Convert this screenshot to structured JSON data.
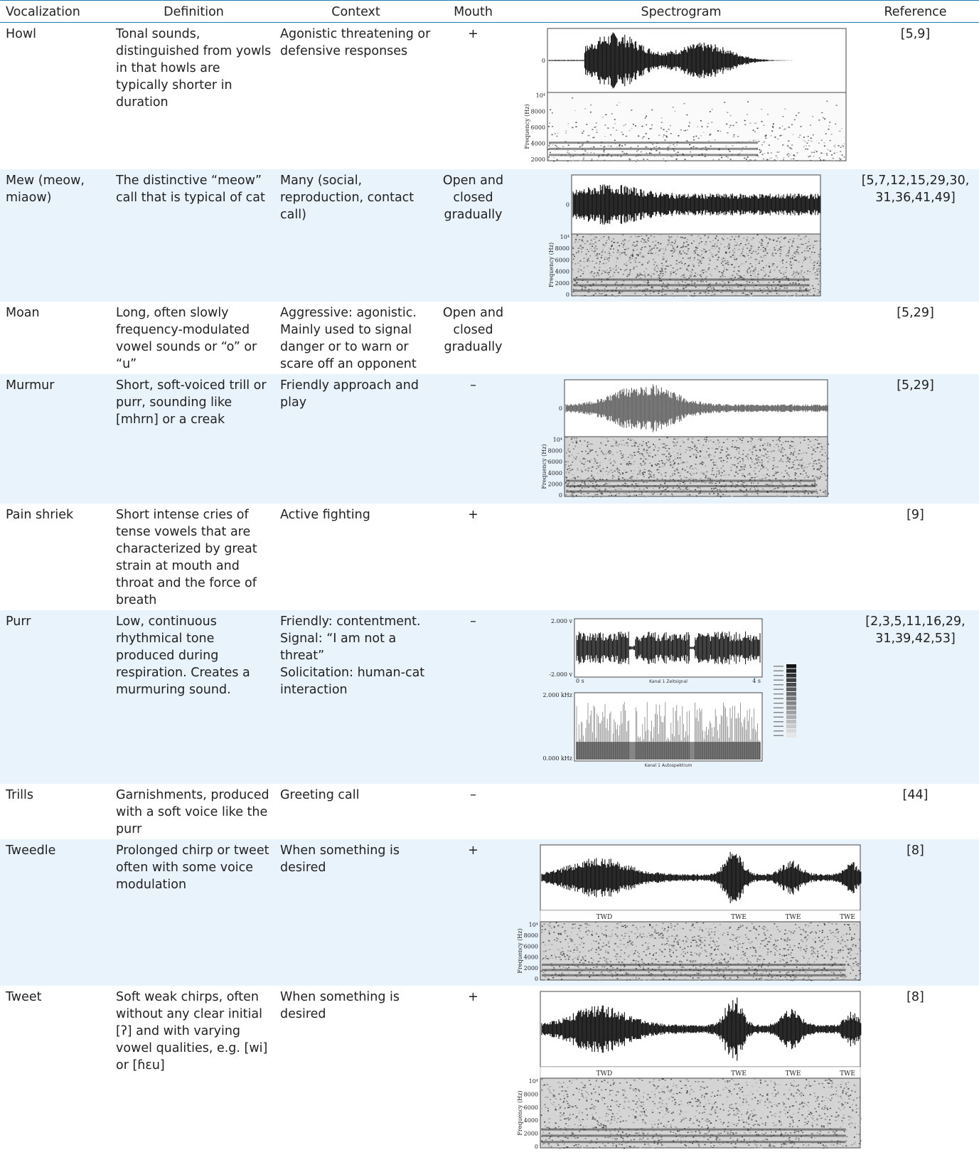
{
  "headers": {
    "vocalization": "Vocalization",
    "definition": "Definition",
    "context": "Context",
    "mouth": "Mouth",
    "spectrogram": "Spectrogram",
    "reference": "Reference"
  },
  "rows": [
    {
      "vocalization": "Howl",
      "definition": "Tonal sounds, distinguished from yowls in that howls are typically shorter in duration",
      "context": [
        "Agonistic threatening or defensive responses"
      ],
      "mouth": "+",
      "reference": "[5,9]",
      "spectrogram": {
        "style": "wave-spec",
        "ticks": [
          "10⁴",
          "8000",
          "6000",
          "4000",
          "2000"
        ],
        "axis_label": "Frequency (Hz)",
        "zero": "0"
      }
    },
    {
      "vocalization": "Mew (meow, miaow)",
      "definition": "The distinctive “meow” call that is typical of cat",
      "context": [
        "Many (social, reproduction, contact call)"
      ],
      "mouth": "Open and closed gradually",
      "reference": "[5,7,12,15,29,30, 31,36,41,49]",
      "spectrogram": {
        "style": "wave-spec",
        "ticks": [
          "10⁴",
          "8000",
          "6000",
          "4000",
          "2000",
          "0"
        ],
        "axis_label": "Frequency (Hz)",
        "zero": "0"
      }
    },
    {
      "vocalization": "Moan",
      "definition": "Long, often slowly frequency-modulated vowel sounds or “o” or “u”",
      "context": [
        "Aggressive: agonistic. Mainly used to signal danger or to warn or scare off an opponent"
      ],
      "mouth": "Open and closed gradually",
      "reference": "[5,29]",
      "spectrogram": null
    },
    {
      "vocalization": "Murmur",
      "definition": "Short, soft-voiced trill or purr, sounding like [mhrn] or a creak",
      "context": [
        "Friendly approach and play"
      ],
      "mouth": "–",
      "reference": "[5,29]",
      "spectrogram": {
        "style": "wave-spec",
        "ticks": [
          "10⁴",
          "8000",
          "6000",
          "4000",
          "2000",
          "0"
        ],
        "axis_label": "Frequency (Hz)",
        "zero": "0"
      }
    },
    {
      "vocalization": "Pain shriek",
      "definition": "Short intense cries of tense vowels that are characterized by great strain at mouth and throat and the force of breath",
      "context": [
        "Active fighting"
      ],
      "mouth": "+",
      "reference": "[9]",
      "spectrogram": null
    },
    {
      "vocalization": "Purr",
      "definition": "Low, continuous rhythmical tone produced during respiration. Creates a murmuring sound.",
      "context": [
        "Friendly: contentment. Signal: “I am not a threat”",
        "Solicitation: human-cat interaction"
      ],
      "mouth": "–",
      "reference": "[2,3,5,11,16,29, 31,39,42,53]",
      "spectrogram": {
        "style": "purr",
        "top_max": "2.000 v",
        "top_min": "-2.000 v",
        "top_caption": "Kanal 1 Zeitsignal",
        "bottom_max": "2.000 kHz",
        "bottom_min": "0.000 kHz",
        "bottom_caption": "Kanal 1 Autospektrum",
        "t_start": "0 s",
        "t_end": "4 s"
      }
    },
    {
      "vocalization": "Trills",
      "definition": "Garnishments, produced with a soft voice like the purr",
      "context": [
        "Greeting call"
      ],
      "mouth": "–",
      "reference": "[44]",
      "spectrogram": null
    },
    {
      "vocalization": "Tweedle",
      "definition": "Prolonged chirp or tweet often with some voice modulation",
      "context": [
        "When something is desired"
      ],
      "mouth": "+",
      "reference": "[8]",
      "spectrogram": {
        "style": "segments",
        "segments": [
          "TWD",
          "TWE",
          "TWE",
          "TWE"
        ],
        "ticks": [
          "10⁴",
          "8000",
          "6000",
          "4000",
          "2000",
          "0"
        ],
        "axis_label": "Frequency (Hz)"
      }
    },
    {
      "vocalization": "Tweet",
      "definition": "Soft weak chirps, often without any clear initial [ʔ] and with varying vowel qualities, e.g. [wi] or [ɦɛu]",
      "context": [
        "When something is desired"
      ],
      "mouth": "+",
      "reference": "[8]",
      "spectrogram": {
        "style": "segments",
        "segments": [
          "TWD",
          "TWE",
          "TWE",
          "TWE"
        ],
        "ticks": [
          "10⁴",
          "8000",
          "6000",
          "4000",
          "2000",
          "0"
        ],
        "axis_label": "Frequency (Hz)"
      }
    }
  ]
}
